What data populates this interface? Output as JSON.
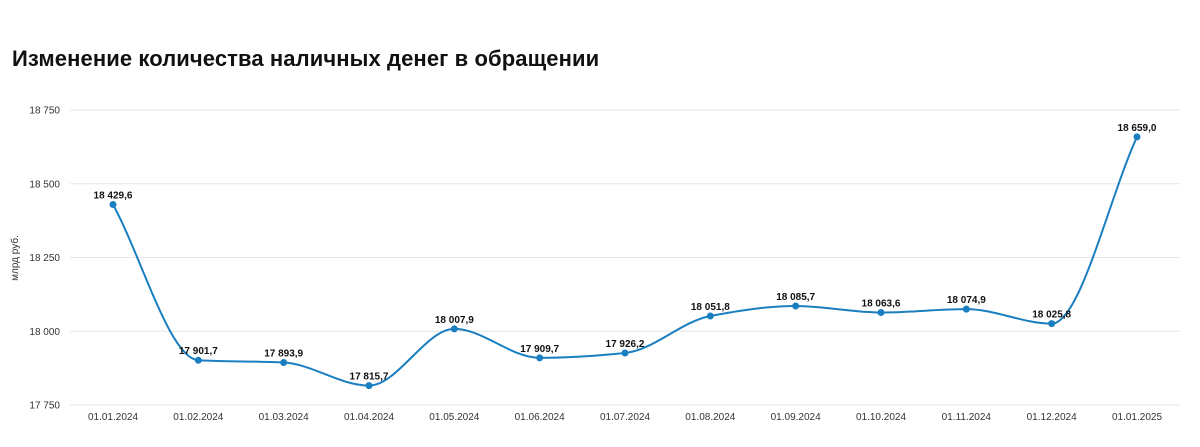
{
  "chart_data": {
    "type": "line",
    "title": "Изменение количества наличных денег в обращении",
    "ylabel": "млрд руб.",
    "xlabel": "",
    "categories": [
      "01.01.2024",
      "01.02.2024",
      "01.03.2024",
      "01.04.2024",
      "01.05.2024",
      "01.06.2024",
      "01.07.2024",
      "01.08.2024",
      "01.09.2024",
      "01.10.2024",
      "01.11.2024",
      "01.12.2024",
      "01.01.2025"
    ],
    "values": [
      18429.6,
      17901.7,
      17893.9,
      17815.7,
      18007.9,
      17909.7,
      17926.2,
      18051.8,
      18085.7,
      18063.6,
      18074.9,
      18025.8,
      18659.0
    ],
    "value_labels": [
      "18 429,6",
      "17 901,7",
      "17 893,9",
      "17 815,7",
      "18 007,9",
      "17 909,7",
      "17 926,2",
      "18 051,8",
      "18 085,7",
      "18 063,6",
      "18 074,9",
      "18 025,8",
      "18 659,0"
    ],
    "y_ticks": [
      17750,
      18000,
      18250,
      18500,
      18750
    ],
    "y_tick_labels": [
      "17 750",
      "18 000",
      "18 250",
      "18 500",
      "18 750"
    ],
    "ylim": [
      17750,
      18750
    ],
    "grid": true,
    "smooth": true,
    "line_color": "#1a7fc0"
  }
}
